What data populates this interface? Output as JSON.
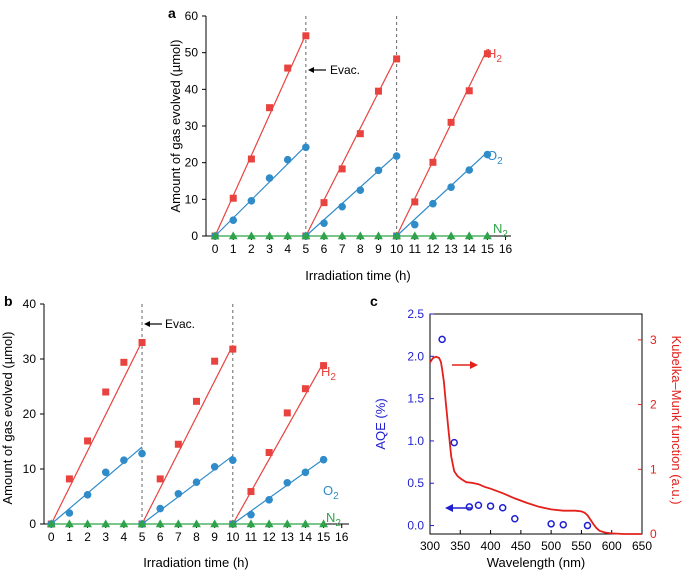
{
  "chart_data": [
    {
      "panel": "a",
      "type": "scatter",
      "xlabel": "Irradiation time (h)",
      "ylabel": "Amount of gas evolved (µmol)",
      "xlim": [
        -0.5,
        16.3
      ],
      "ylim": [
        0,
        60
      ],
      "xticks": [
        0,
        1,
        2,
        3,
        4,
        5,
        6,
        7,
        8,
        9,
        10,
        11,
        12,
        13,
        14,
        15,
        16
      ],
      "yticks": [
        0,
        10,
        20,
        30,
        40,
        50,
        60
      ],
      "evac_lines": [
        5,
        10
      ],
      "annotation": "Evac.",
      "series": [
        {
          "name": "H2",
          "label_main": "H",
          "label_sub": "2",
          "color": "#e8433f",
          "marker": "square",
          "x": [
            0,
            1,
            2,
            3,
            4,
            5,
            5,
            6,
            7,
            8,
            9,
            10,
            10,
            11,
            12,
            13,
            14,
            15
          ],
          "y": [
            0,
            10.3,
            21,
            35,
            45.8,
            54.6,
            0,
            9.1,
            18.3,
            27.9,
            39.5,
            48.3,
            0,
            9.3,
            20.1,
            31,
            39.6,
            49.7
          ],
          "fits": [
            {
              "x": [
                0,
                5
              ],
              "y": [
                0,
                55
              ]
            },
            {
              "x": [
                5,
                10
              ],
              "y": [
                0,
                49
              ]
            },
            {
              "x": [
                10,
                15
              ],
              "y": [
                0,
                51
              ]
            }
          ]
        },
        {
          "name": "O2",
          "label_main": "O",
          "label_sub": "2",
          "color": "#2f8cc9",
          "marker": "circle",
          "x": [
            0,
            1,
            2,
            3,
            4,
            5,
            5,
            6,
            7,
            8,
            9,
            10,
            10,
            11,
            12,
            13,
            14,
            15
          ],
          "y": [
            0,
            4.3,
            9.6,
            15.8,
            20.8,
            24.2,
            0,
            3.5,
            8,
            12.5,
            17.9,
            21.8,
            0,
            3.1,
            8.8,
            13.3,
            18,
            22.2
          ],
          "fits": [
            {
              "x": [
                0,
                5
              ],
              "y": [
                0,
                24.6
              ]
            },
            {
              "x": [
                5,
                10
              ],
              "y": [
                0,
                22.2
              ]
            },
            {
              "x": [
                10,
                15
              ],
              "y": [
                0,
                22.9
              ]
            }
          ]
        },
        {
          "name": "N2",
          "label_main": "N",
          "label_sub": "2",
          "color": "#2ea34a",
          "marker": "triangle",
          "x": [
            0,
            1,
            2,
            3,
            4,
            5,
            6,
            7,
            8,
            9,
            10,
            11,
            12,
            13,
            14,
            15
          ],
          "y": [
            0,
            0,
            0,
            0,
            0,
            0,
            0,
            0,
            0,
            0,
            0,
            0,
            0,
            0,
            0,
            0
          ],
          "fits": [
            {
              "x": [
                0,
                15
              ],
              "y": [
                0,
                0
              ]
            }
          ]
        }
      ]
    },
    {
      "panel": "b",
      "type": "scatter",
      "xlabel": "Irradiation time (h)",
      "ylabel": "Amount of gas evolved (µmol)",
      "xlim": [
        -0.4,
        16.4
      ],
      "ylim": [
        0,
        40
      ],
      "xticks": [
        0,
        1,
        2,
        3,
        4,
        5,
        6,
        7,
        8,
        9,
        10,
        11,
        12,
        13,
        14,
        15,
        16
      ],
      "yticks": [
        0,
        10,
        20,
        30,
        40
      ],
      "evac_lines": [
        5,
        10
      ],
      "annotation": "Evac.",
      "series": [
        {
          "name": "H2",
          "label_main": "H",
          "label_sub": "2",
          "color": "#e8433f",
          "marker": "square",
          "x": [
            0,
            1,
            2,
            3,
            4,
            5,
            5,
            6,
            7,
            8,
            9,
            10,
            10,
            11,
            12,
            13,
            14,
            15
          ],
          "y": [
            0,
            8.2,
            15.1,
            24,
            29.4,
            33,
            0,
            8.2,
            14.5,
            22.3,
            29.6,
            31.8,
            0,
            5.9,
            13,
            20.2,
            24.6,
            28.8
          ],
          "fits": [
            {
              "x": [
                0,
                5
              ],
              "y": [
                0,
                33.2
              ]
            },
            {
              "x": [
                5,
                10
              ],
              "y": [
                0,
                32.5
              ]
            },
            {
              "x": [
                10,
                15
              ],
              "y": [
                0,
                29.4
              ]
            }
          ]
        },
        {
          "name": "O2",
          "label_main": "O",
          "label_sub": "2",
          "color": "#2f8cc9",
          "marker": "circle",
          "x": [
            0,
            1,
            2,
            3,
            4,
            5,
            5,
            6,
            7,
            8,
            9,
            10,
            10,
            11,
            12,
            13,
            14,
            15
          ],
          "y": [
            0,
            2,
            5.3,
            9.4,
            11.6,
            12.8,
            0,
            2.8,
            5.5,
            7.6,
            10.4,
            11.6,
            0,
            1.7,
            4.4,
            7.5,
            9.4,
            11.7
          ],
          "fits": [
            {
              "x": [
                0,
                5
              ],
              "y": [
                0,
                14
              ]
            },
            {
              "x": [
                5,
                10
              ],
              "y": [
                0,
                12.4
              ]
            },
            {
              "x": [
                10,
                15
              ],
              "y": [
                0,
                11.8
              ]
            }
          ]
        },
        {
          "name": "N2",
          "label_main": "N",
          "label_sub": "2",
          "color": "#2ea34a",
          "marker": "triangle",
          "x": [
            0,
            1,
            2,
            3,
            4,
            5,
            6,
            7,
            8,
            9,
            10,
            11,
            12,
            13,
            14,
            15
          ],
          "y": [
            0,
            0,
            0,
            0,
            0,
            0,
            0,
            0,
            0,
            0,
            0,
            0,
            0,
            0,
            0,
            0
          ],
          "fits": [
            {
              "x": [
                0,
                15
              ],
              "y": [
                0,
                0
              ]
            }
          ]
        }
      ]
    },
    {
      "panel": "c",
      "type": "scatter",
      "xlabel": "Wavelength (nm)",
      "ylabel": "AQE (%)",
      "ylabel_right": "Kubelka–Munk function (a.u.)",
      "xlim": [
        300,
        650
      ],
      "ylim": [
        -0.1,
        2.5
      ],
      "ylim_right": [
        0,
        3.4
      ],
      "xticks": [
        300,
        350,
        400,
        450,
        500,
        550,
        600,
        650
      ],
      "yticks": [
        0.0,
        0.5,
        1.0,
        1.5,
        2.0,
        2.5
      ],
      "yticks_right": [
        0,
        1,
        2,
        3
      ],
      "aqe": {
        "name": "AQE",
        "color": "#1f1fd1",
        "x": [
          320,
          340,
          365,
          380,
          400,
          420,
          440,
          500,
          520,
          560
        ],
        "y": [
          2.2,
          0.98,
          0.22,
          0.24,
          0.23,
          0.21,
          0.08,
          0.02,
          0.01,
          0.0
        ]
      },
      "km": {
        "name": "Kubelka–Munk function",
        "color": "#e3201b",
        "x": [
          300,
          305,
          310,
          315,
          318,
          320,
          323,
          326,
          330,
          335,
          340,
          345,
          350,
          360,
          370,
          380,
          390,
          400,
          420,
          440,
          460,
          480,
          500,
          520,
          530,
          540,
          550,
          555,
          560,
          565,
          570,
          575,
          580,
          590,
          600,
          620,
          650
        ],
        "y": [
          2.65,
          2.72,
          2.74,
          2.72,
          2.66,
          2.55,
          2.35,
          2.05,
          1.65,
          1.2,
          0.97,
          0.9,
          0.86,
          0.8,
          0.79,
          0.77,
          0.73,
          0.7,
          0.63,
          0.55,
          0.48,
          0.42,
          0.38,
          0.36,
          0.36,
          0.36,
          0.35,
          0.33,
          0.29,
          0.22,
          0.15,
          0.09,
          0.05,
          0.02,
          0.01,
          0.0,
          0.0
        ]
      }
    }
  ],
  "labels": {
    "panel_a": "a",
    "panel_b": "b",
    "panel_c": "c",
    "xlabel_ab": "Irradiation time (h)",
    "ylabel_ab": "Amount of gas evolved (µmol)",
    "evac": "Evac.",
    "xlabel_c": "Wavelength (nm)",
    "ylabel_c_left": "AQE (%)",
    "ylabel_c_right": "Kubelka–Munk function (a.u.)"
  },
  "colors": {
    "axis": "#000000",
    "grid_dash": "#666666",
    "h2": "#e8433f",
    "o2": "#2f8cc9",
    "n2": "#2ea34a",
    "aqe": "#1f1fd1",
    "km": "#e3201b"
  }
}
